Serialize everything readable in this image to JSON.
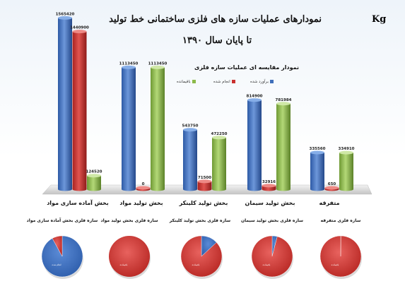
{
  "header": {
    "title_line1": "نمودارهای عملیات سازه های فلزی ساختمانی خط تولید",
    "title_line2": "تا پایان سال ۱۳۹۰",
    "unit": "Kg"
  },
  "colors": {
    "series_1": "#3f6fba",
    "series_2": "#c9302f",
    "series_3": "#8cba4a"
  },
  "chart_data": [
    {
      "type": "bar",
      "title": "نمودار مقایسه ای عملیات سازه فلزی",
      "categories": [
        "بخش آماده سازی مواد",
        "بخش تولید مواد",
        "بخش تولید کلینکر",
        "بخش تولید سیمان",
        "متفرقه"
      ],
      "series": [
        {
          "name": "برآورد شده",
          "values": [
            1565420,
            1113450,
            543750,
            814900,
            335560
          ],
          "labels": [
            "1565420",
            "1113450",
            "543750",
            "814900",
            "335560"
          ]
        },
        {
          "name": "انجام شده",
          "values": [
            1440900,
            0,
            71500,
            32916,
            650
          ],
          "labels": [
            "1440900",
            "0",
            "71500",
            "32916",
            "650"
          ]
        },
        {
          "name": "باقیمانده",
          "values": [
            124520,
            1113450,
            472250,
            781984,
            334910
          ],
          "labels": [
            "124520",
            "1113450",
            "472250",
            "781984",
            "334910"
          ]
        }
      ],
      "legend": "top",
      "ylim": [
        0,
        1600000
      ],
      "grid": false
    },
    {
      "type": "pie",
      "title": "سازه فلزی بخش آماده سازی مواد",
      "slices": [
        {
          "name": "انجام شده",
          "value": 1440900
        },
        {
          "name": "باقیمانده",
          "value": 124520
        }
      ]
    },
    {
      "type": "pie",
      "title": "سازه فلزی بخش تولید مواد",
      "slices": [
        {
          "name": "انجام شده",
          "value": 0
        },
        {
          "name": "باقیمانده",
          "value": 1113450
        }
      ]
    },
    {
      "type": "pie",
      "title": "سازه فلزی بخش تولید کلینکر",
      "slices": [
        {
          "name": "انجام شده",
          "value": 71500
        },
        {
          "name": "باقیمانده",
          "value": 472250
        }
      ]
    },
    {
      "type": "pie",
      "title": "سازه فلزی بخش تولید سیمان",
      "slices": [
        {
          "name": "انجام شده",
          "value": 32916
        },
        {
          "name": "باقیمانده",
          "value": 781984
        }
      ]
    },
    {
      "type": "pie",
      "title": "سازه فلزی متفرقه",
      "slices": [
        {
          "name": "انجام شده",
          "value": 650
        },
        {
          "name": "باقیمانده",
          "value": 334910
        }
      ]
    }
  ]
}
